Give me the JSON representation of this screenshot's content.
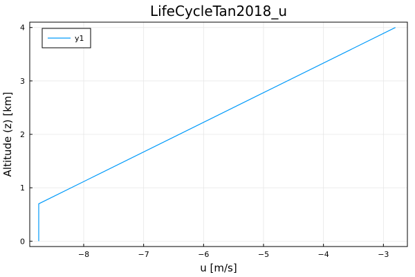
{
  "chart_data": {
    "type": "line",
    "title": "LifeCycleTan2018_u",
    "xlabel": "u [m/s]",
    "ylabel": "Altitude (z) [km]",
    "xlim": [
      -8.9,
      -2.6
    ],
    "ylim": [
      -0.1,
      4.1
    ],
    "xticks": [
      -8,
      -7,
      -6,
      -5,
      -4,
      -3
    ],
    "yticks": [
      0,
      1,
      2,
      3,
      4
    ],
    "xtick_labels": [
      "−8",
      "−7",
      "−6",
      "−5",
      "−4",
      "−3"
    ],
    "ytick_labels": [
      "0",
      "1",
      "2",
      "3",
      "4"
    ],
    "grid": true,
    "legend_position": "top-left",
    "series": [
      {
        "name": "y1",
        "color": "#009AFA",
        "x": [
          -8.75,
          -8.75,
          -8.75,
          -2.8
        ],
        "y": [
          0.0,
          0.68,
          0.7,
          4.0
        ]
      }
    ]
  }
}
